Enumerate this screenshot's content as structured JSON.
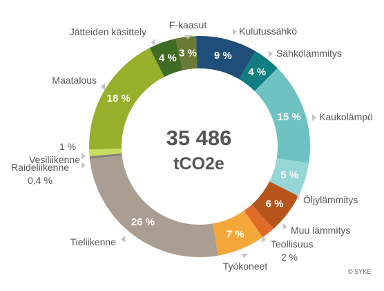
{
  "chart_data": {
    "type": "pie",
    "donut": true,
    "center": {
      "value": "35 486",
      "unit": "tCO2e"
    },
    "source": "© SYKE",
    "slices": [
      {
        "name": "Kulutussähkö",
        "value": 9,
        "pct_label": "9 %",
        "color": "#1f4e79"
      },
      {
        "name": "Sähkölämmitys",
        "value": 4,
        "pct_label": "4 %",
        "color": "#0f7d82"
      },
      {
        "name": "Kaukolämpö",
        "value": 15,
        "pct_label": "15 %",
        "color": "#6ec3c2"
      },
      {
        "name": "Öljylämmitys",
        "value": 5,
        "pct_label": "5 %",
        "color": "#94d7d6"
      },
      {
        "name": "Muu lämmitys",
        "value": 6,
        "pct_label": "6 %",
        "color": "#b7541c"
      },
      {
        "name": "Teollisuus",
        "value": 2,
        "pct_label": "",
        "ext_value": "2 %",
        "color": "#e06b29"
      },
      {
        "name": "Työkoneet",
        "value": 7,
        "pct_label": "7 %",
        "color": "#f4a83a"
      },
      {
        "name": "Tieliikenne",
        "value": 26,
        "pct_label": "26 %",
        "color": "#aa9d91"
      },
      {
        "name": "Raideliikenne",
        "value": 0.4,
        "pct_label": "",
        "ext_value": "0,4 %",
        "color": "#8a8079"
      },
      {
        "name": "Vesiliikenne",
        "value": 1,
        "pct_label": "",
        "ext_value": "1 %",
        "color": "#c7dd5d"
      },
      {
        "name": "Maatalous",
        "value": 18,
        "pct_label": "18 %",
        "color": "#97b02c"
      },
      {
        "name": "Jätteiden käsittely",
        "value": 4,
        "pct_label": "4 %",
        "color": "#3f6b24"
      },
      {
        "name": "F-kaasut",
        "value": 3,
        "pct_label": "3 %",
        "color": "#6a7a37"
      }
    ]
  }
}
